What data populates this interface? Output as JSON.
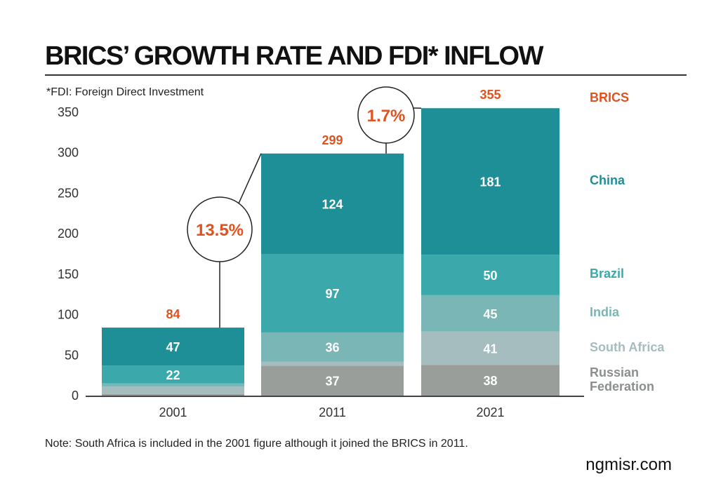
{
  "chart_data": {
    "type": "bar",
    "stacked": true,
    "title": "BRICS’ GROWTH RATE AND FDI* INFLOW",
    "subtitle": "*FDI: Foreign Direct Investment",
    "note": "Note: South Africa is included in the 2001 figure although it joined the BRICS in 2011.",
    "categories": [
      "2001",
      "2011",
      "2021"
    ],
    "ylim": [
      0,
      350
    ],
    "yticks": [
      "0",
      "50",
      "100",
      "150",
      "200",
      "250",
      "300",
      "350"
    ],
    "totals": {
      "name": "BRICS",
      "values": [
        84,
        299,
        355
      ],
      "labels": [
        "84",
        "299",
        "355"
      ],
      "color": "#e0521f"
    },
    "series": [
      {
        "name": "Russian Federation",
        "values": [
          2,
          37,
          38
        ],
        "labels": [
          null,
          "37",
          "38"
        ],
        "color": "#9a9e9b",
        "legend_color": "#8c908d"
      },
      {
        "name": "South Africa",
        "values": [
          9,
          5,
          41
        ],
        "labels": [
          null,
          null,
          "41"
        ],
        "color": "#a5bdbe",
        "legend_color": "#a5bdbe"
      },
      {
        "name": "India",
        "values": [
          4,
          36,
          45
        ],
        "labels": [
          null,
          "36",
          "45"
        ],
        "color": "#7ab6b5",
        "legend_color": "#7ab6b5"
      },
      {
        "name": "Brazil",
        "values": [
          22,
          97,
          50
        ],
        "labels": [
          "22",
          "97",
          "50"
        ],
        "color": "#3ba9ab",
        "legend_color": "#3ba9ab"
      },
      {
        "name": "China",
        "values": [
          47,
          124,
          181
        ],
        "labels": [
          "47",
          "124",
          "181"
        ],
        "color": "#1e8f96",
        "legend_color": "#1e8f96"
      }
    ],
    "growth_rates": [
      {
        "label": "13.5%",
        "from": "2001",
        "to": "2011"
      },
      {
        "label": "1.7%",
        "from": "2011",
        "to": "2021"
      }
    ],
    "legend_position": "right",
    "grid": false
  },
  "watermark": "ngmisr.com"
}
